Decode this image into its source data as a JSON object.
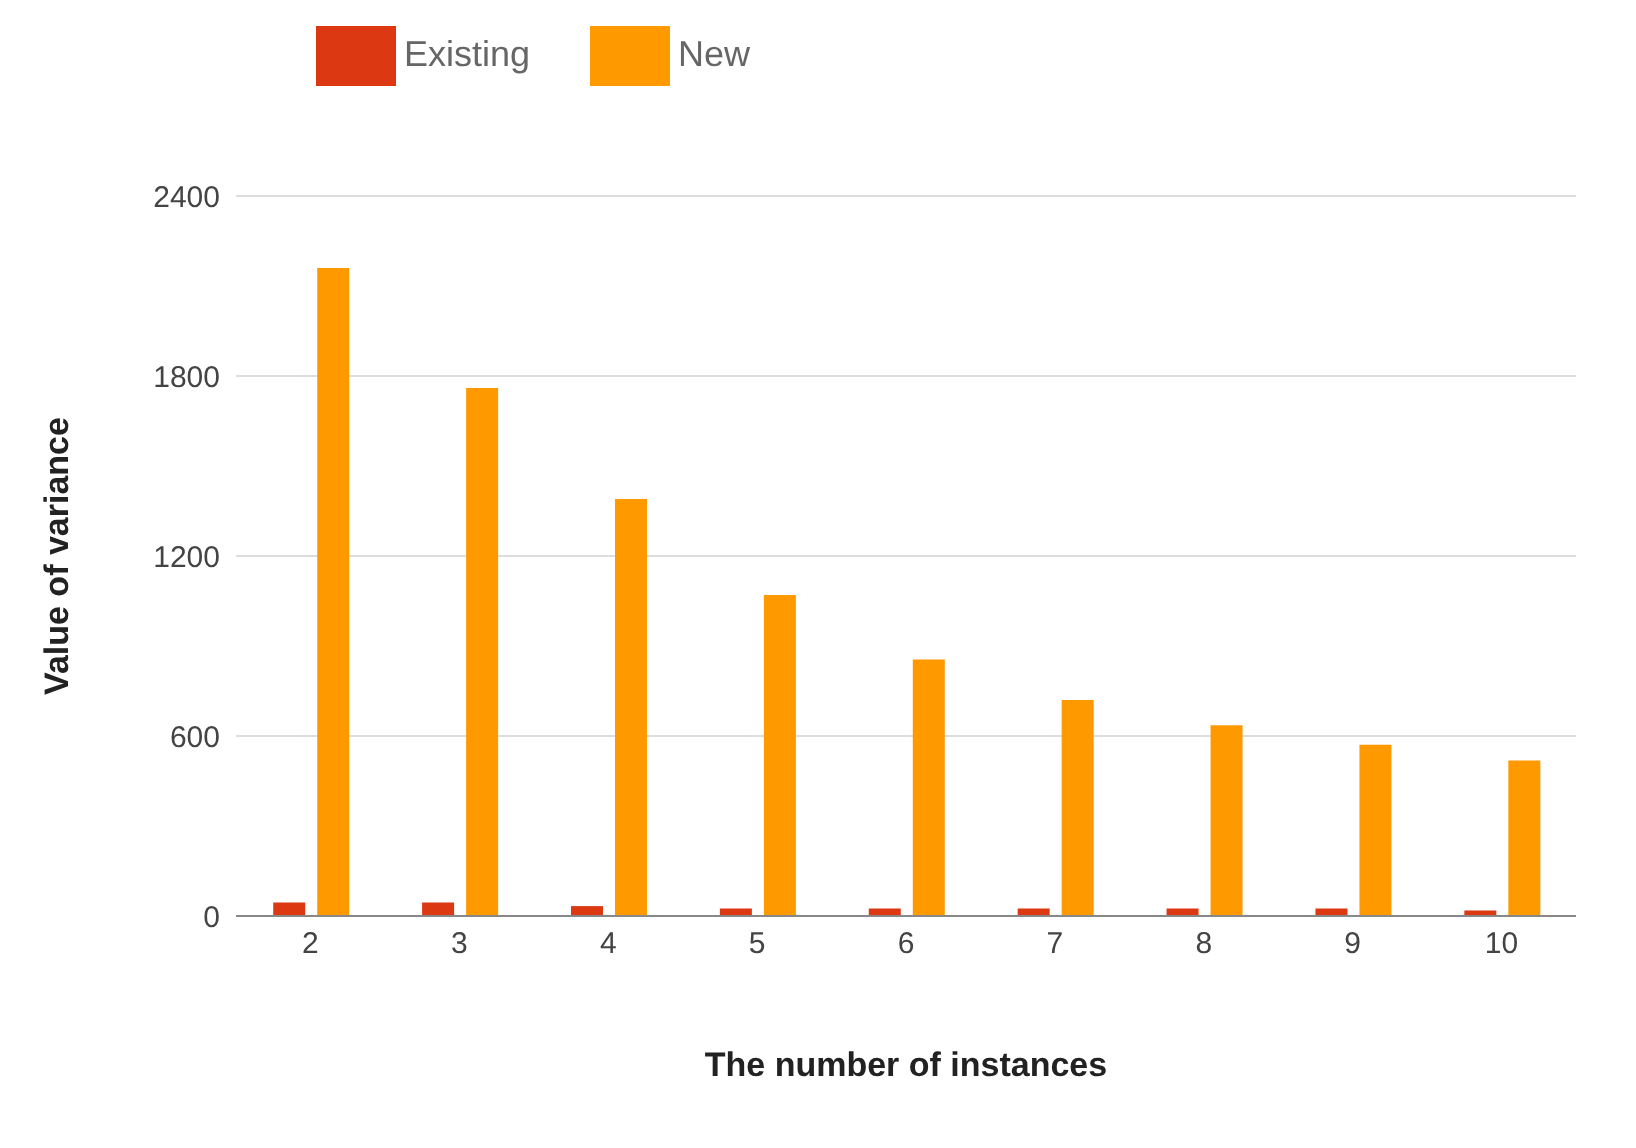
{
  "chart_data": {
    "type": "bar",
    "xlabel": "The number of instances",
    "ylabel": "Value of variance",
    "categories": [
      "2",
      "3",
      "4",
      "5",
      "6",
      "7",
      "8",
      "9",
      "10"
    ],
    "series": [
      {
        "name": "Existing",
        "color": "#dc3912",
        "values": [
          45,
          45,
          33,
          25,
          25,
          25,
          25,
          25,
          18
        ]
      },
      {
        "name": "New",
        "color": "#ff9900",
        "values": [
          2160,
          1760,
          1390,
          1070,
          855,
          720,
          636,
          571,
          518
        ]
      }
    ],
    "ylim": [
      0,
      2400
    ],
    "yticks": [
      0,
      600,
      1200,
      1800,
      2400
    ],
    "grid": "y",
    "legend": "top left"
  }
}
